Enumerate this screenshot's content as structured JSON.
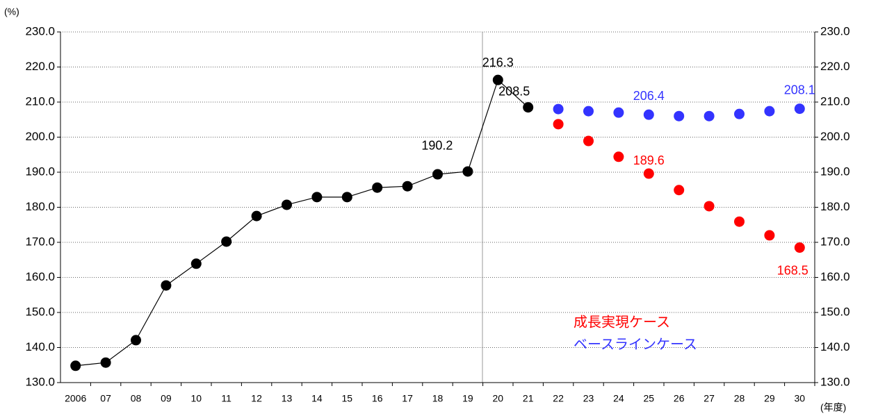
{
  "chart_data": {
    "type": "line",
    "y_label": "(%)",
    "x_label": "(年度)",
    "categories": [
      "2006",
      "07",
      "08",
      "09",
      "10",
      "11",
      "12",
      "13",
      "14",
      "15",
      "16",
      "17",
      "18",
      "19",
      "20",
      "21",
      "22",
      "23",
      "24",
      "25",
      "26",
      "27",
      "28",
      "29",
      "30"
    ],
    "series": [
      {
        "color": "#000000",
        "line": true,
        "values": [
          134.8,
          135.7,
          142.1,
          157.7,
          163.9,
          170.2,
          177.5,
          180.7,
          182.9,
          182.9,
          185.6,
          186.0,
          189.4,
          190.2,
          216.3,
          208.5,
          null,
          null,
          null,
          null,
          null,
          null,
          null,
          null,
          null
        ],
        "value_labels": [
          null,
          null,
          null,
          null,
          null,
          null,
          null,
          null,
          null,
          null,
          null,
          null,
          null,
          "190.2",
          "216.3",
          "208.5",
          null,
          null,
          null,
          null,
          null,
          null,
          null,
          null,
          null
        ]
      },
      {
        "name": "成長実現ケース",
        "color": "#ff0000",
        "line": false,
        "values": [
          null,
          null,
          null,
          null,
          null,
          null,
          null,
          null,
          null,
          null,
          null,
          null,
          null,
          null,
          null,
          null,
          203.7,
          198.9,
          194.4,
          189.6,
          184.9,
          180.3,
          175.9,
          172.0,
          168.5
        ],
        "value_labels": [
          null,
          null,
          null,
          null,
          null,
          null,
          null,
          null,
          null,
          null,
          null,
          null,
          null,
          null,
          null,
          null,
          null,
          null,
          null,
          "189.6",
          null,
          null,
          null,
          null,
          "168.5"
        ]
      },
      {
        "name": "ベースラインケース",
        "color": "#3333ff",
        "line": false,
        "values": [
          null,
          null,
          null,
          null,
          null,
          null,
          null,
          null,
          null,
          null,
          null,
          null,
          null,
          null,
          null,
          null,
          208.0,
          207.4,
          207.0,
          206.4,
          206.0,
          206.0,
          206.6,
          207.4,
          208.1
        ],
        "value_labels": [
          null,
          null,
          null,
          null,
          null,
          null,
          null,
          null,
          null,
          null,
          null,
          null,
          null,
          null,
          null,
          null,
          null,
          null,
          null,
          "206.4",
          null,
          null,
          null,
          null,
          "208.1"
        ]
      }
    ],
    "ylim": [
      130,
      230
    ],
    "yticks": [
      {
        "value": 130,
        "label": "130.0"
      },
      {
        "value": 140,
        "label": "140.0"
      },
      {
        "value": 150,
        "label": "150.0"
      },
      {
        "value": 160,
        "label": "160.0"
      },
      {
        "value": 170,
        "label": "170.0"
      },
      {
        "value": 180,
        "label": "180.0"
      },
      {
        "value": 190,
        "label": "190.0"
      },
      {
        "value": 200,
        "label": "200.0"
      },
      {
        "value": 210,
        "label": "210.0"
      },
      {
        "value": 220,
        "label": "220.0"
      },
      {
        "value": 230,
        "label": "230.0"
      }
    ],
    "grid": true,
    "right_axis": true
  }
}
